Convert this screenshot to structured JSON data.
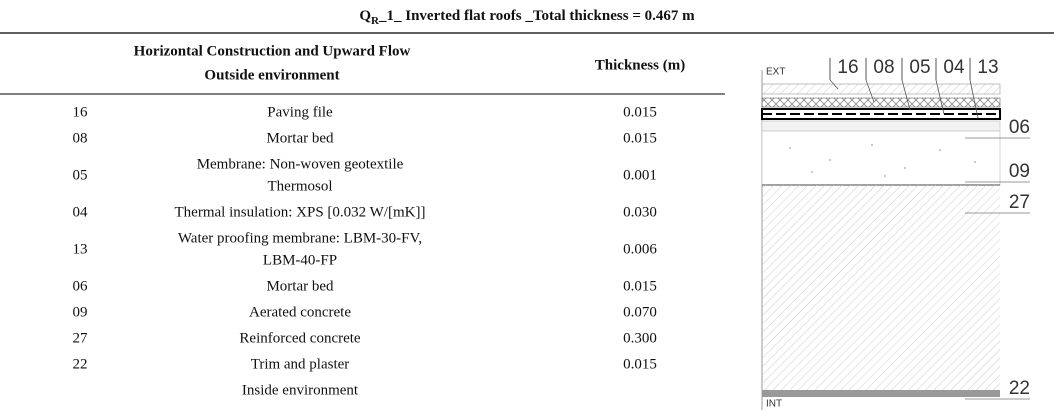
{
  "header": {
    "title_main": "Q",
    "title_sub": "R",
    "title_rest": "_1_ Inverted flat roofs _Total thickness = 0.467 m"
  },
  "table": {
    "columns": [
      "Horizontal Construction and Upward Flow",
      "Outside environment",
      "Thickness (m)"
    ],
    "rows": [
      [
        "16",
        [
          "Paving file"
        ],
        "0.015"
      ],
      [
        "08",
        [
          "Mortar bed"
        ],
        "0.015"
      ],
      [
        "05",
        [
          "Membrane: Non-woven geotextile",
          "Thermosol"
        ],
        "0.001"
      ],
      [
        "04",
        [
          "Thermal insulation: XPS [0.032 W/[mK]]"
        ],
        "0.030"
      ],
      [
        "13",
        [
          "Water proofing membrane: LBM-30-FV,",
          "LBM-40-FP"
        ],
        "0.006"
      ],
      [
        "06",
        [
          "Mortar bed"
        ],
        "0.015"
      ],
      [
        "09",
        [
          "Aerated concrete"
        ],
        "0.070"
      ],
      [
        "27",
        [
          "Reinforced concrete"
        ],
        "0.300"
      ],
      [
        "22",
        [
          "Trim and plaster"
        ],
        "0.015"
      ]
    ],
    "footer": "Inside environment"
  },
  "diagram": {
    "top_label": "EXT",
    "bottom_label": "INT",
    "top_codes": [
      "16",
      "08",
      "05",
      "04",
      "13"
    ],
    "side_codes": [
      "06",
      "09",
      "27",
      "22"
    ]
  }
}
